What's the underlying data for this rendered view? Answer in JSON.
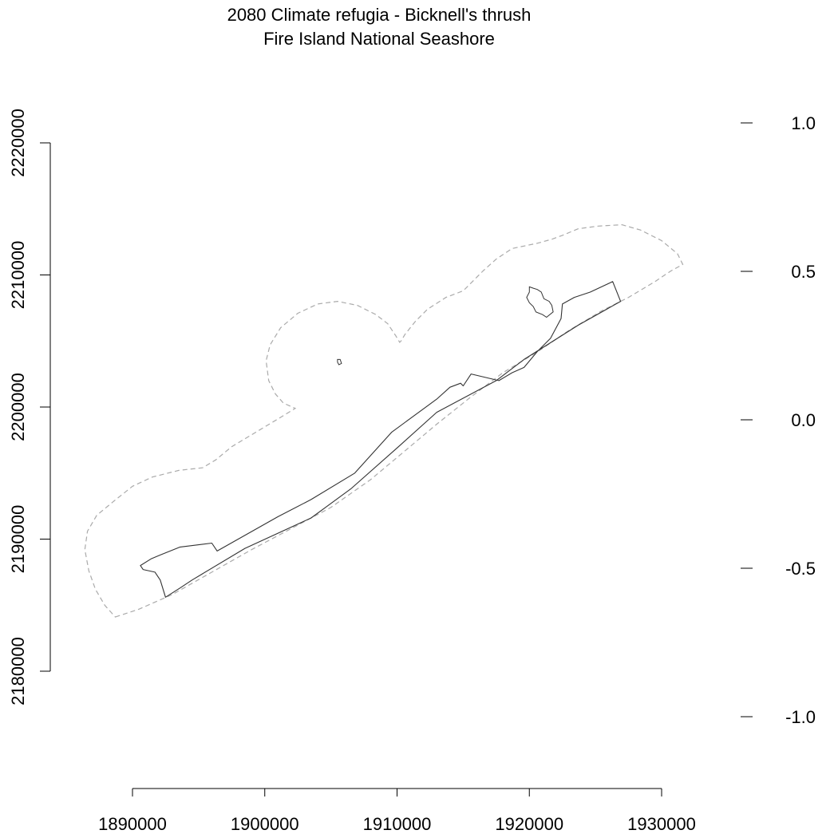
{
  "title": {
    "line1": "2080 Climate refugia - Bicknell's thrush",
    "line2": "Fire Island National Seashore"
  },
  "x_axis": {
    "range": [
      1890000,
      1930000
    ],
    "ticks": [
      {
        "value": 1890000,
        "label": "1890000"
      },
      {
        "value": 1900000,
        "label": "1900000"
      },
      {
        "value": 1910000,
        "label": "1910000"
      },
      {
        "value": 1920000,
        "label": "1920000"
      },
      {
        "value": 1930000,
        "label": "1930000"
      }
    ]
  },
  "y_axis": {
    "range": [
      2180000,
      2220000
    ],
    "ticks": [
      {
        "value": 2180000,
        "label": "2180000"
      },
      {
        "value": 2190000,
        "label": "2190000"
      },
      {
        "value": 2200000,
        "label": "2200000"
      },
      {
        "value": 2210000,
        "label": "2210000"
      },
      {
        "value": 2220000,
        "label": "2220000"
      }
    ]
  },
  "legend_scale": {
    "range": [
      -1.0,
      1.0
    ],
    "ticks": [
      {
        "value": 1.0,
        "label": "1.0"
      },
      {
        "value": 0.5,
        "label": "0.5"
      },
      {
        "value": 0.0,
        "label": "0.0"
      },
      {
        "value": -0.5,
        "label": "-0.5"
      },
      {
        "value": -1.0,
        "label": "-1.0"
      }
    ]
  },
  "colors": {
    "boundary": "#333333",
    "buffer": "#aaaaaa",
    "axis": "#000000"
  },
  "map_data": {
    "park_boundary": [
      [
        1890600,
        2188000
      ],
      [
        1891400,
        2188500
      ],
      [
        1892100,
        2188800
      ],
      [
        1893600,
        2189400
      ],
      [
        1896000,
        2189700
      ],
      [
        1896400,
        2189100
      ],
      [
        1901000,
        2191700
      ],
      [
        1903500,
        2193000
      ],
      [
        1906800,
        2195000
      ],
      [
        1909600,
        2198100
      ],
      [
        1913000,
        2200600
      ],
      [
        1914000,
        2201500
      ],
      [
        1914800,
        2201800
      ],
      [
        1915000,
        2201600
      ],
      [
        1915600,
        2202500
      ],
      [
        1917700,
        2202000
      ],
      [
        1918700,
        2202600
      ],
      [
        1919600,
        2203000
      ],
      [
        1920600,
        2204200
      ],
      [
        1921600,
        2205200
      ],
      [
        1922400,
        2206700
      ],
      [
        1922500,
        2207800
      ],
      [
        1923400,
        2208300
      ],
      [
        1924600,
        2208700
      ],
      [
        1926300,
        2209500
      ],
      [
        1926900,
        2208000
      ],
      [
        1923700,
        2206200
      ],
      [
        1919600,
        2203600
      ],
      [
        1917500,
        2202000
      ],
      [
        1913000,
        2199600
      ],
      [
        1910000,
        2196900
      ],
      [
        1906500,
        2193800
      ],
      [
        1903500,
        2191600
      ],
      [
        1898500,
        2189300
      ],
      [
        1894500,
        2186900
      ],
      [
        1893600,
        2186300
      ],
      [
        1892500,
        2185600
      ],
      [
        1892100,
        2186900
      ],
      [
        1891700,
        2187500
      ],
      [
        1890800,
        2187700
      ],
      [
        1890600,
        2188000
      ]
    ],
    "interior_unit": [
      [
        1920000,
        2209100
      ],
      [
        1920300,
        2209000
      ],
      [
        1920600,
        2208900
      ],
      [
        1920900,
        2208700
      ],
      [
        1921100,
        2208200
      ],
      [
        1921500,
        2208000
      ],
      [
        1921700,
        2207700
      ],
      [
        1921800,
        2207200
      ],
      [
        1921300,
        2206800
      ],
      [
        1921000,
        2207000
      ],
      [
        1920500,
        2207200
      ],
      [
        1920300,
        2207600
      ],
      [
        1920000,
        2207900
      ],
      [
        1919800,
        2208300
      ],
      [
        1920000,
        2208700
      ],
      [
        1920000,
        2209100
      ]
    ],
    "small_feature": [
      [
        1905500,
        2203600
      ],
      [
        1905700,
        2203600
      ],
      [
        1905800,
        2203300
      ],
      [
        1905600,
        2203200
      ],
      [
        1905500,
        2203400
      ],
      [
        1905500,
        2203600
      ]
    ],
    "buffer_outline": [
      [
        1888700,
        2184100
      ],
      [
        1890500,
        2184700
      ],
      [
        1893000,
        2185800
      ],
      [
        1896000,
        2187500
      ],
      [
        1899000,
        2189200
      ],
      [
        1902000,
        2190800
      ],
      [
        1905000,
        2192400
      ],
      [
        1908000,
        2194500
      ],
      [
        1910500,
        2196600
      ],
      [
        1913000,
        2198700
      ],
      [
        1915500,
        2200700
      ],
      [
        1918000,
        2202600
      ],
      [
        1920500,
        2204100
      ],
      [
        1923000,
        2205800
      ],
      [
        1925500,
        2207300
      ],
      [
        1927500,
        2208300
      ],
      [
        1929500,
        2209500
      ],
      [
        1930700,
        2210300
      ],
      [
        1931600,
        2210800
      ],
      [
        1931200,
        2211600
      ],
      [
        1930000,
        2212600
      ],
      [
        1928400,
        2213400
      ],
      [
        1927000,
        2213800
      ],
      [
        1925200,
        2213700
      ],
      [
        1923700,
        2213500
      ],
      [
        1922500,
        2213000
      ],
      [
        1921700,
        2212700
      ],
      [
        1920600,
        2212400
      ],
      [
        1918700,
        2212000
      ],
      [
        1917500,
        2211200
      ],
      [
        1916500,
        2210300
      ],
      [
        1915700,
        2209500
      ],
      [
        1915000,
        2208800
      ],
      [
        1913700,
        2208300
      ],
      [
        1912300,
        2207400
      ],
      [
        1911400,
        2206500
      ],
      [
        1910600,
        2205500
      ],
      [
        1910300,
        2205000
      ],
      [
        1910200,
        2204900
      ],
      [
        1909900,
        2205400
      ],
      [
        1909300,
        2206300
      ],
      [
        1908400,
        2207000
      ],
      [
        1907000,
        2207700
      ],
      [
        1905500,
        2208000
      ],
      [
        1904000,
        2207800
      ],
      [
        1902500,
        2207100
      ],
      [
        1901200,
        2206000
      ],
      [
        1900400,
        2204700
      ],
      [
        1900100,
        2203500
      ],
      [
        1900300,
        2202000
      ],
      [
        1900800,
        2201000
      ],
      [
        1901400,
        2200300
      ],
      [
        1902300,
        2199900
      ],
      [
        1901000,
        2199100
      ],
      [
        1899000,
        2197900
      ],
      [
        1897500,
        2197000
      ],
      [
        1896300,
        2196000
      ],
      [
        1895300,
        2195400
      ],
      [
        1893500,
        2195200
      ],
      [
        1891500,
        2194700
      ],
      [
        1890000,
        2194000
      ],
      [
        1888500,
        2192800
      ],
      [
        1887300,
        2191800
      ],
      [
        1886600,
        2190600
      ],
      [
        1886400,
        2189200
      ],
      [
        1886700,
        2187600
      ],
      [
        1887200,
        2186200
      ],
      [
        1887900,
        2185000
      ],
      [
        1888700,
        2184100
      ]
    ]
  }
}
